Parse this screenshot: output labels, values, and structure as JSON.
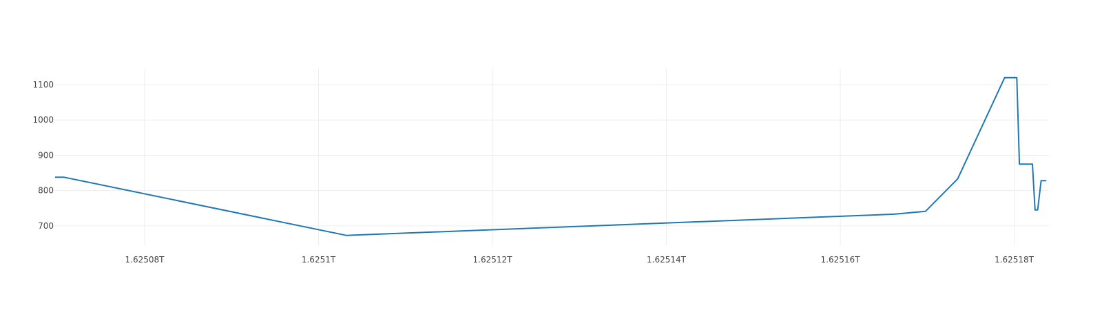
{
  "chart_data": {
    "type": "line",
    "title": "",
    "xlabel": "",
    "ylabel": "",
    "grid": true,
    "legend": false,
    "line_color": "#1f77b4",
    "xlim": [
      1625069700000,
      1625184000000
    ],
    "ylim": [
      645,
      1145
    ],
    "x_ticks": [
      {
        "value": 1625080000000,
        "label": "1.62508T"
      },
      {
        "value": 1625100000000,
        "label": "1.6251T"
      },
      {
        "value": 1625120000000,
        "label": "1.62512T"
      },
      {
        "value": 1625140000000,
        "label": "1.62514T"
      },
      {
        "value": 1625160000000,
        "label": "1.62516T"
      },
      {
        "value": 1625180000000,
        "label": "1.62518T"
      }
    ],
    "y_ticks": [
      {
        "value": 700,
        "label": "700"
      },
      {
        "value": 800,
        "label": "800"
      },
      {
        "value": 900,
        "label": "900"
      },
      {
        "value": 1000,
        "label": "1000"
      },
      {
        "value": 1100,
        "label": "1100"
      }
    ],
    "series": [
      {
        "x": [
          1625069700000,
          1625070700000,
          1625103200000,
          1625166200000,
          1625169800000,
          1625173500000,
          1625178900000,
          1625180300000,
          1625180600000,
          1625182100000,
          1625182400000,
          1625182700000,
          1625183100000,
          1625183700000
        ],
        "y": [
          838,
          838,
          673,
          733,
          741,
          833,
          1120,
          1120,
          875,
          875,
          745,
          745,
          828,
          828
        ]
      }
    ]
  }
}
